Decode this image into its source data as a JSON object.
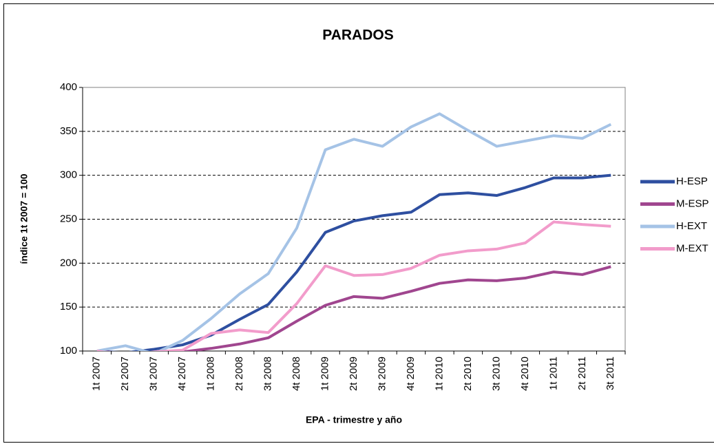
{
  "chart_data": {
    "type": "line",
    "title": "PARADOS",
    "x_label": "EPA - trimestre y año",
    "y_label": "índice 1t 2007 = 100",
    "categories": [
      "1t 2007",
      "2t 2007",
      "3t 2007",
      "4t 2007",
      "1t 2008",
      "2t 2008",
      "3t 2008",
      "4t 2008",
      "1t 2009",
      "2t 2009",
      "3t 2009",
      "4t 2009",
      "1t 2010",
      "2t 2010",
      "3t 2010",
      "4t 2010",
      "1t 2011",
      "2t 2011",
      "3t 2011"
    ],
    "series": [
      {
        "name": "H-ESP",
        "color": "#2e4fa0",
        "values": [
          100,
          98,
          102,
          107,
          118,
          136,
          153,
          190,
          235,
          248,
          254,
          258,
          278,
          280,
          277,
          286,
          297,
          297,
          300
        ]
      },
      {
        "name": "M-ESP",
        "color": "#a0468f",
        "values": [
          100,
          97,
          98,
          99,
          103,
          108,
          115,
          134,
          152,
          162,
          160,
          168,
          177,
          181,
          180,
          183,
          190,
          187,
          196
        ]
      },
      {
        "name": "H-EXT",
        "color": "#a5c3e6",
        "values": [
          100,
          106,
          97,
          112,
          137,
          165,
          188,
          240,
          329,
          341,
          333,
          355,
          370,
          351,
          333,
          339,
          345,
          342,
          358
        ]
      },
      {
        "name": "M-EXT",
        "color": "#f29ccb",
        "values": [
          100,
          95,
          99,
          101,
          120,
          124,
          121,
          154,
          197,
          186,
          187,
          194,
          209,
          214,
          216,
          223,
          247,
          244,
          242
        ]
      }
    ],
    "ylim": [
      100,
      400
    ],
    "yticks": [
      100,
      150,
      200,
      250,
      300,
      350,
      400
    ],
    "grid": true,
    "legend": "right"
  }
}
